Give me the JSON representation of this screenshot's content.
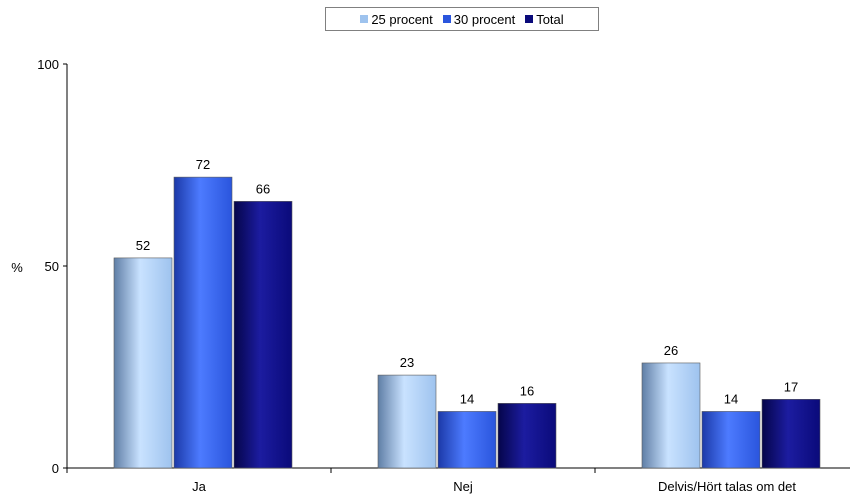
{
  "chart_data": {
    "type": "bar",
    "categories": [
      "Ja",
      "Nej",
      "Delvis/Hört talas om det"
    ],
    "series": [
      {
        "name": "25 procent",
        "values": [
          52,
          23,
          26
        ],
        "color": "#9ec3ee"
      },
      {
        "name": "30 procent",
        "values": [
          72,
          14,
          14
        ],
        "color": "#2a55dd"
      },
      {
        "name": "Total",
        "values": [
          66,
          16,
          17
        ],
        "color": "#0a0a7a"
      }
    ],
    "ylabel": "%",
    "ylim": [
      0,
      100
    ],
    "yticks": [
      0,
      50,
      100
    ],
    "grid": false,
    "legend_position": "top-center",
    "show_data_labels": true
  }
}
